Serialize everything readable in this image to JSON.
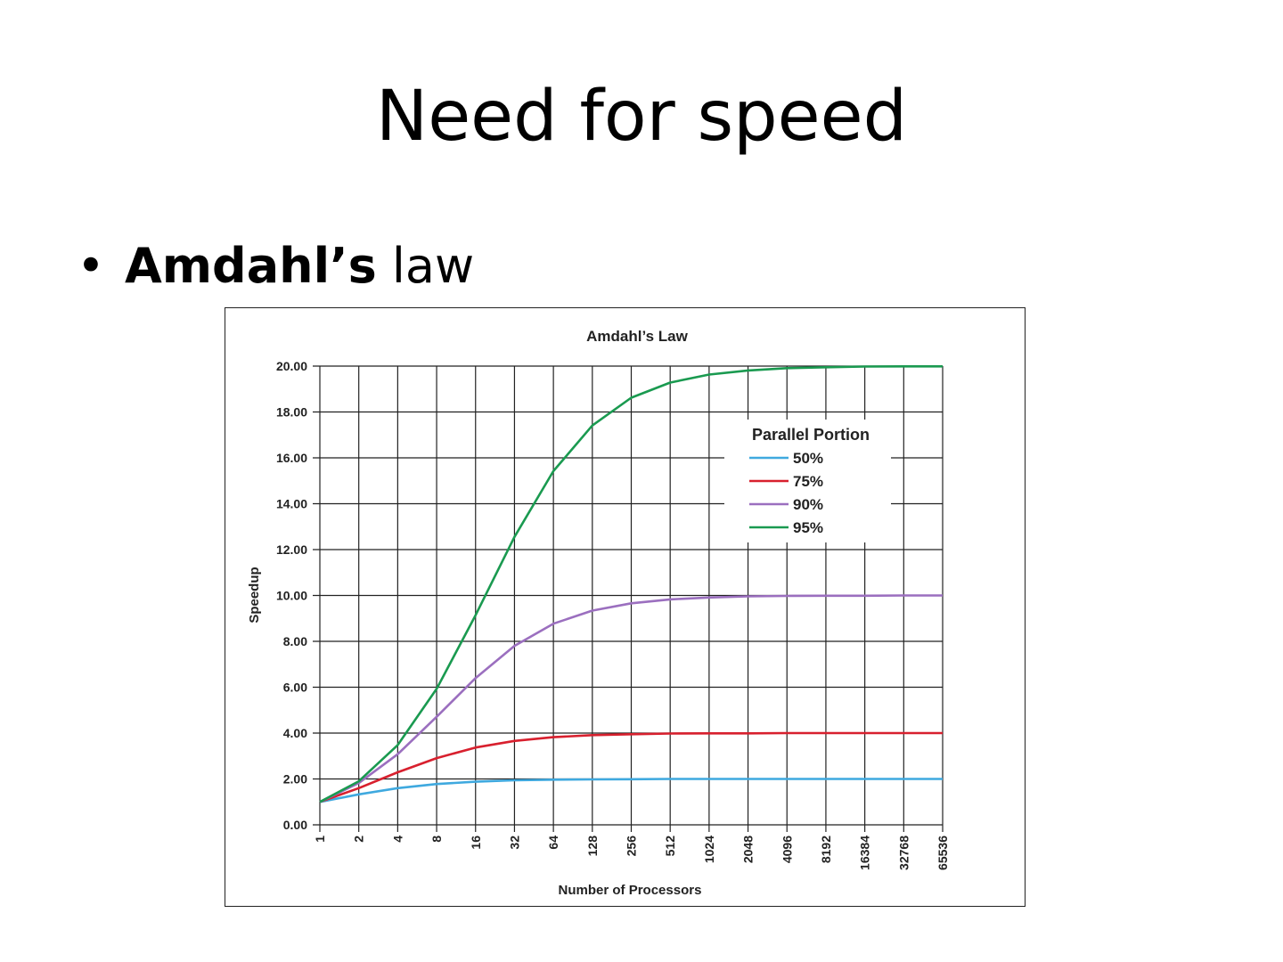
{
  "slide": {
    "title": "Need for speed",
    "bullet_bold": "Amdahl’s",
    "bullet_rest": " law"
  },
  "chart_data": {
    "type": "line",
    "title": "Amdahl’s Law",
    "xlabel": "Number of Processors",
    "ylabel": "Speedup",
    "x_scale": "log2",
    "x": [
      "1",
      "2",
      "4",
      "8",
      "16",
      "32",
      "64",
      "128",
      "256",
      "512",
      "1024",
      "2048",
      "4096",
      "8192",
      "16384",
      "32768",
      "65536"
    ],
    "ylim": [
      0,
      20
    ],
    "yticks": [
      "0.00",
      "2.00",
      "4.00",
      "6.00",
      "8.00",
      "10.00",
      "12.00",
      "14.00",
      "16.00",
      "18.00",
      "20.00"
    ],
    "grid": true,
    "legend_title": "Parallel Portion",
    "legend_position": "top-right",
    "series": [
      {
        "name": "50%",
        "color": "#3fa9df",
        "values": [
          1.0,
          1.33,
          1.6,
          1.78,
          1.88,
          1.94,
          1.97,
          1.98,
          1.99,
          2.0,
          2.0,
          2.0,
          2.0,
          2.0,
          2.0,
          2.0,
          2.0
        ]
      },
      {
        "name": "75%",
        "color": "#d8202e",
        "values": [
          1.0,
          1.6,
          2.29,
          2.91,
          3.37,
          3.66,
          3.82,
          3.91,
          3.95,
          3.98,
          3.99,
          3.99,
          4.0,
          4.0,
          4.0,
          4.0,
          4.0
        ]
      },
      {
        "name": "90%",
        "color": "#9b6fbf",
        "values": [
          1.0,
          1.82,
          3.08,
          4.71,
          6.4,
          7.8,
          8.77,
          9.34,
          9.66,
          9.83,
          9.91,
          9.96,
          9.98,
          9.99,
          9.99,
          10.0,
          10.0
        ]
      },
      {
        "name": "95%",
        "color": "#1a9a50",
        "values": [
          1.0,
          1.9,
          3.48,
          5.93,
          9.14,
          12.55,
          15.42,
          17.41,
          18.62,
          19.28,
          19.63,
          19.81,
          19.91,
          19.95,
          19.98,
          19.99,
          19.99
        ]
      }
    ]
  }
}
